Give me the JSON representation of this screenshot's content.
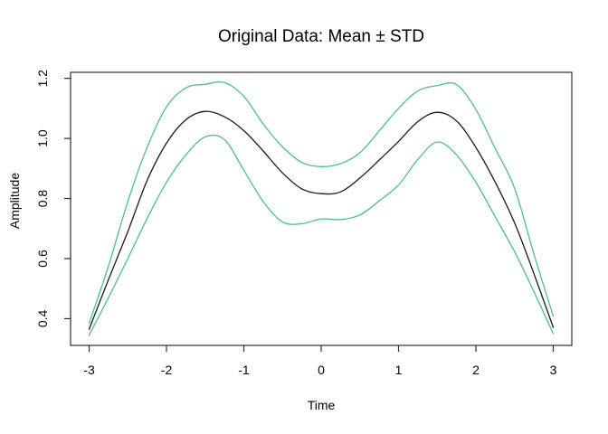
{
  "figure": {
    "title": "Original Data: Mean ± STD",
    "x_label": "Time",
    "y_label": "Amplitude"
  },
  "chart_data": {
    "type": "line",
    "title": "Original Data: Mean ± STD",
    "xlabel": "Time",
    "ylabel": "Amplitude",
    "xlim": [
      -3.24,
      3.24
    ],
    "ylim": [
      0.311,
      1.22
    ],
    "grid": false,
    "legend_position": "none",
    "x_ticks": [
      -3,
      -2,
      -1,
      0,
      1,
      2,
      3
    ],
    "x_tick_labels": [
      "-3",
      "-2",
      "-1",
      "0",
      "1",
      "2",
      "3"
    ],
    "y_ticks": [
      0.4,
      0.6,
      0.8,
      1.0,
      1.2
    ],
    "y_tick_labels": [
      "0.4",
      "0.6",
      "0.8",
      "1.0",
      "1.2"
    ],
    "colors": {
      "mean_line": "#1a1a1a",
      "std_lines": "#4fbd8f",
      "axis": "#2e2e2e"
    },
    "x": [
      -3,
      -2.75,
      -2.5,
      -2.25,
      -2,
      -1.75,
      -1.5,
      -1.25,
      -1,
      -0.75,
      -0.5,
      -0.25,
      0,
      0.25,
      0.5,
      0.75,
      1,
      1.25,
      1.5,
      1.75,
      2,
      2.25,
      2.5,
      2.75,
      3
    ],
    "series": [
      {
        "name": "mean",
        "color": "#1a1a1a",
        "values": [
          0.365,
          0.53,
          0.69,
          0.86,
          0.984,
          1.062,
          1.09,
          1.072,
          1.026,
          0.958,
          0.885,
          0.832,
          0.816,
          0.822,
          0.868,
          0.928,
          0.99,
          1.056,
          1.087,
          1.058,
          0.97,
          0.854,
          0.719,
          0.55,
          0.371
        ]
      },
      {
        "name": "mean_plus_std",
        "color": "#4fbd8f",
        "values": [
          0.385,
          0.575,
          0.79,
          0.97,
          1.105,
          1.168,
          1.18,
          1.186,
          1.14,
          1.048,
          0.972,
          0.92,
          0.906,
          0.916,
          0.952,
          1.025,
          1.1,
          1.158,
          1.176,
          1.179,
          1.096,
          0.966,
          0.834,
          0.615,
          0.408
        ]
      },
      {
        "name": "mean_minus_std",
        "color": "#4fbd8f",
        "values": [
          0.345,
          0.47,
          0.6,
          0.733,
          0.854,
          0.945,
          1.005,
          0.996,
          0.894,
          0.79,
          0.722,
          0.716,
          0.732,
          0.73,
          0.745,
          0.792,
          0.845,
          0.93,
          0.988,
          0.945,
          0.854,
          0.739,
          0.623,
          0.49,
          0.35
        ]
      }
    ]
  }
}
